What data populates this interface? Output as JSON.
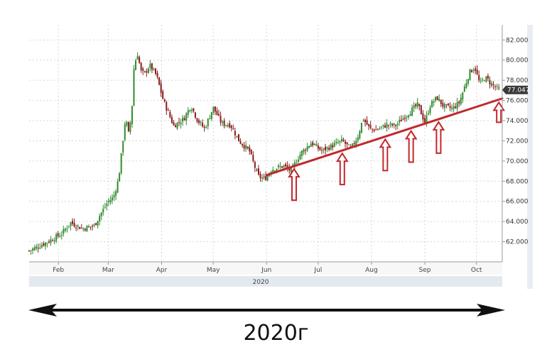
{
  "caption": "2020г",
  "chart_data": {
    "type": "candlestick",
    "title": "",
    "xlabel": "",
    "ylabel": "",
    "period_label": "2020",
    "ylim": [
      60.0,
      83.5
    ],
    "y_ticks": [
      "62.000",
      "64.000",
      "66.000",
      "68.000",
      "70.000",
      "72.000",
      "74.000",
      "76.000",
      "78.000",
      "80.000",
      "82.000"
    ],
    "x_ticks": [
      "Feb",
      "Mar",
      "Apr",
      "May",
      "Jun",
      "Jul",
      "Aug",
      "Sep",
      "Oct"
    ],
    "x_tick_days": [
      31,
      60,
      91,
      121,
      152,
      182,
      213,
      244,
      274
    ],
    "last_price": 77.047,
    "last_price_label": "77.047",
    "grid": true,
    "colors": {
      "up": "#2e8b2e",
      "down": "#8b1a1a",
      "annotation": "#c0282d",
      "axis": "#999999"
    },
    "close_path": [
      [
        14,
        61.1
      ],
      [
        25,
        62.0
      ],
      [
        33,
        62.8
      ],
      [
        38,
        63.9
      ],
      [
        45,
        63.3
      ],
      [
        52,
        63.6
      ],
      [
        55,
        64.6
      ],
      [
        60,
        66.0
      ],
      [
        63,
        66.4
      ],
      [
        66,
        68.2
      ],
      [
        68,
        71.2
      ],
      [
        70,
        74.3
      ],
      [
        72,
        72.5
      ],
      [
        74,
        75.8
      ],
      [
        75,
        79.5
      ],
      [
        77,
        80.6
      ],
      [
        79,
        78.9
      ],
      [
        81,
        78.6
      ],
      [
        84,
        79.5
      ],
      [
        88,
        78.5
      ],
      [
        92,
        76.0
      ],
      [
        98,
        73.5
      ],
      [
        104,
        74.2
      ],
      [
        108,
        75.5
      ],
      [
        112,
        74.0
      ],
      [
        116,
        73.2
      ],
      [
        121,
        75.3
      ],
      [
        126,
        73.7
      ],
      [
        131,
        73.6
      ],
      [
        136,
        72.0
      ],
      [
        142,
        71.0
      ],
      [
        147,
        68.5
      ],
      [
        151,
        68.2
      ],
      [
        155,
        69.2
      ],
      [
        162,
        69.5
      ],
      [
        166,
        69.0
      ],
      [
        172,
        70.8
      ],
      [
        178,
        71.8
      ],
      [
        184,
        71.0
      ],
      [
        190,
        71.5
      ],
      [
        196,
        72.0
      ],
      [
        201,
        71.2
      ],
      [
        205,
        72.4
      ],
      [
        208,
        74.2
      ],
      [
        212,
        73.2
      ],
      [
        216,
        73.1
      ],
      [
        222,
        73.6
      ],
      [
        227,
        73.5
      ],
      [
        231,
        74.2
      ],
      [
        236,
        75.0
      ],
      [
        240,
        75.6
      ],
      [
        244,
        73.8
      ],
      [
        247,
        75.5
      ],
      [
        251,
        76.3
      ],
      [
        255,
        75.4
      ],
      [
        260,
        75.2
      ],
      [
        264,
        75.8
      ],
      [
        267,
        77.3
      ],
      [
        270,
        78.8
      ],
      [
        273,
        79.3
      ],
      [
        276,
        77.6
      ],
      [
        279,
        78.3
      ],
      [
        283,
        77.6
      ],
      [
        287,
        77.047
      ]
    ],
    "annotations": {
      "trendline": {
        "from": [
          152,
          68.6
        ],
        "to": [
          289,
          76.2
        ]
      },
      "up_arrows_at_days": [
        168,
        196,
        221,
        236,
        252,
        287
      ],
      "timeline_arrow": "double-headed"
    }
  }
}
